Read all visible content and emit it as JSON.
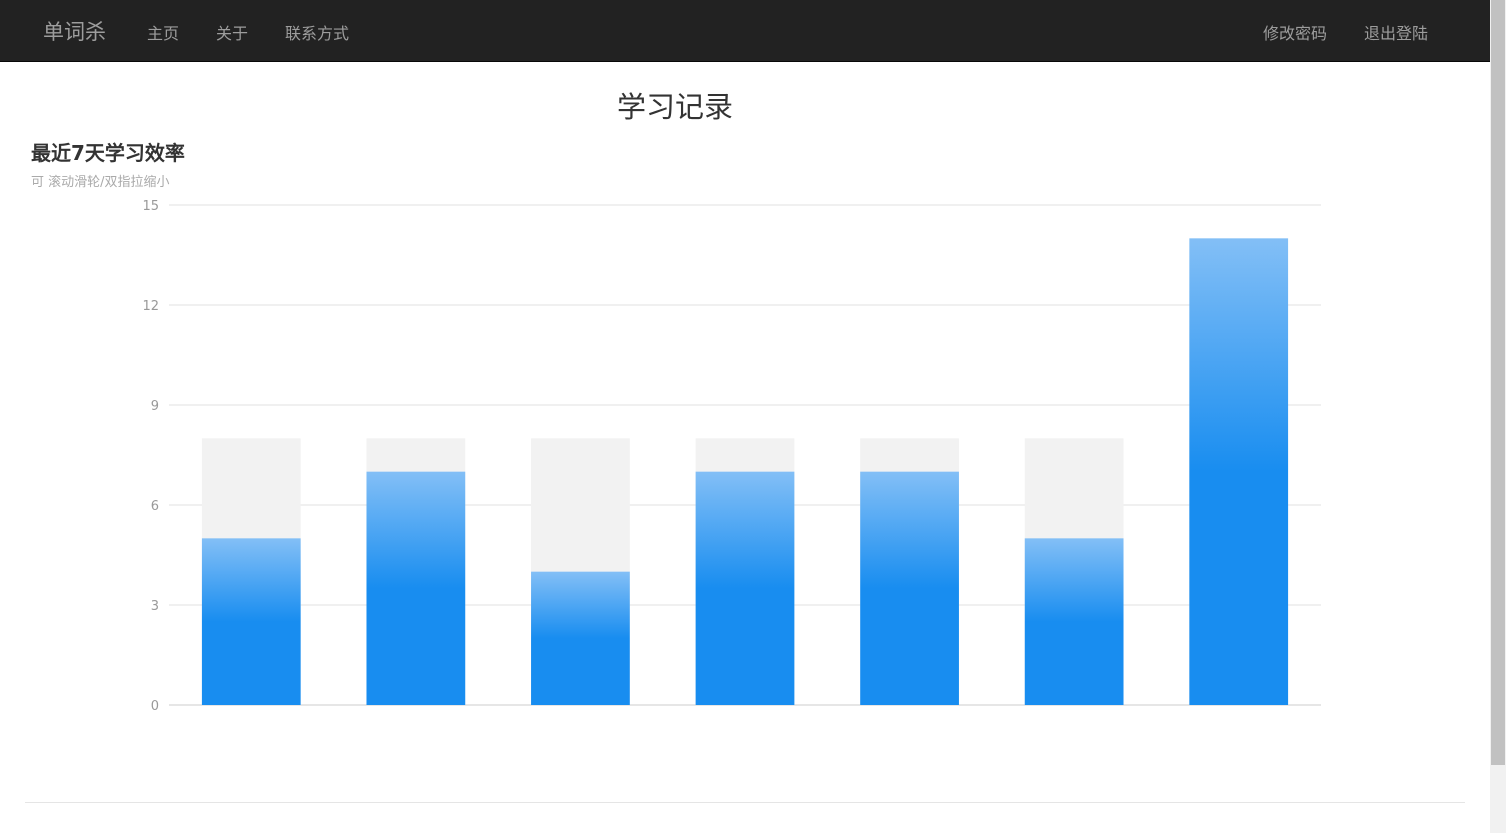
{
  "nav": {
    "brand": "单词杀",
    "left_items": [
      "主页",
      "关于",
      "联系方式"
    ],
    "right_items": [
      "修改密码",
      "退出登陆"
    ]
  },
  "page": {
    "title": "学习记录"
  },
  "chart_data": {
    "type": "bar",
    "title": "最近7天学习效率",
    "subtitle": "可 滚动滑轮/双指拉缩小",
    "categories": [
      "",
      "",
      "",
      "",
      "",
      "",
      ""
    ],
    "series": [
      {
        "values": [
          5,
          7,
          4,
          7,
          7,
          5,
          14
        ]
      }
    ],
    "background_values": [
      8,
      8,
      8,
      8,
      8,
      8,
      8
    ],
    "ylim": [
      0,
      15
    ],
    "yticks": [
      0,
      3,
      6,
      9,
      12,
      15
    ],
    "grid": true,
    "colors": {
      "bar_top": "#83bff6",
      "bar_bottom": "#188df0",
      "shadow": "#f2f2f2"
    }
  }
}
